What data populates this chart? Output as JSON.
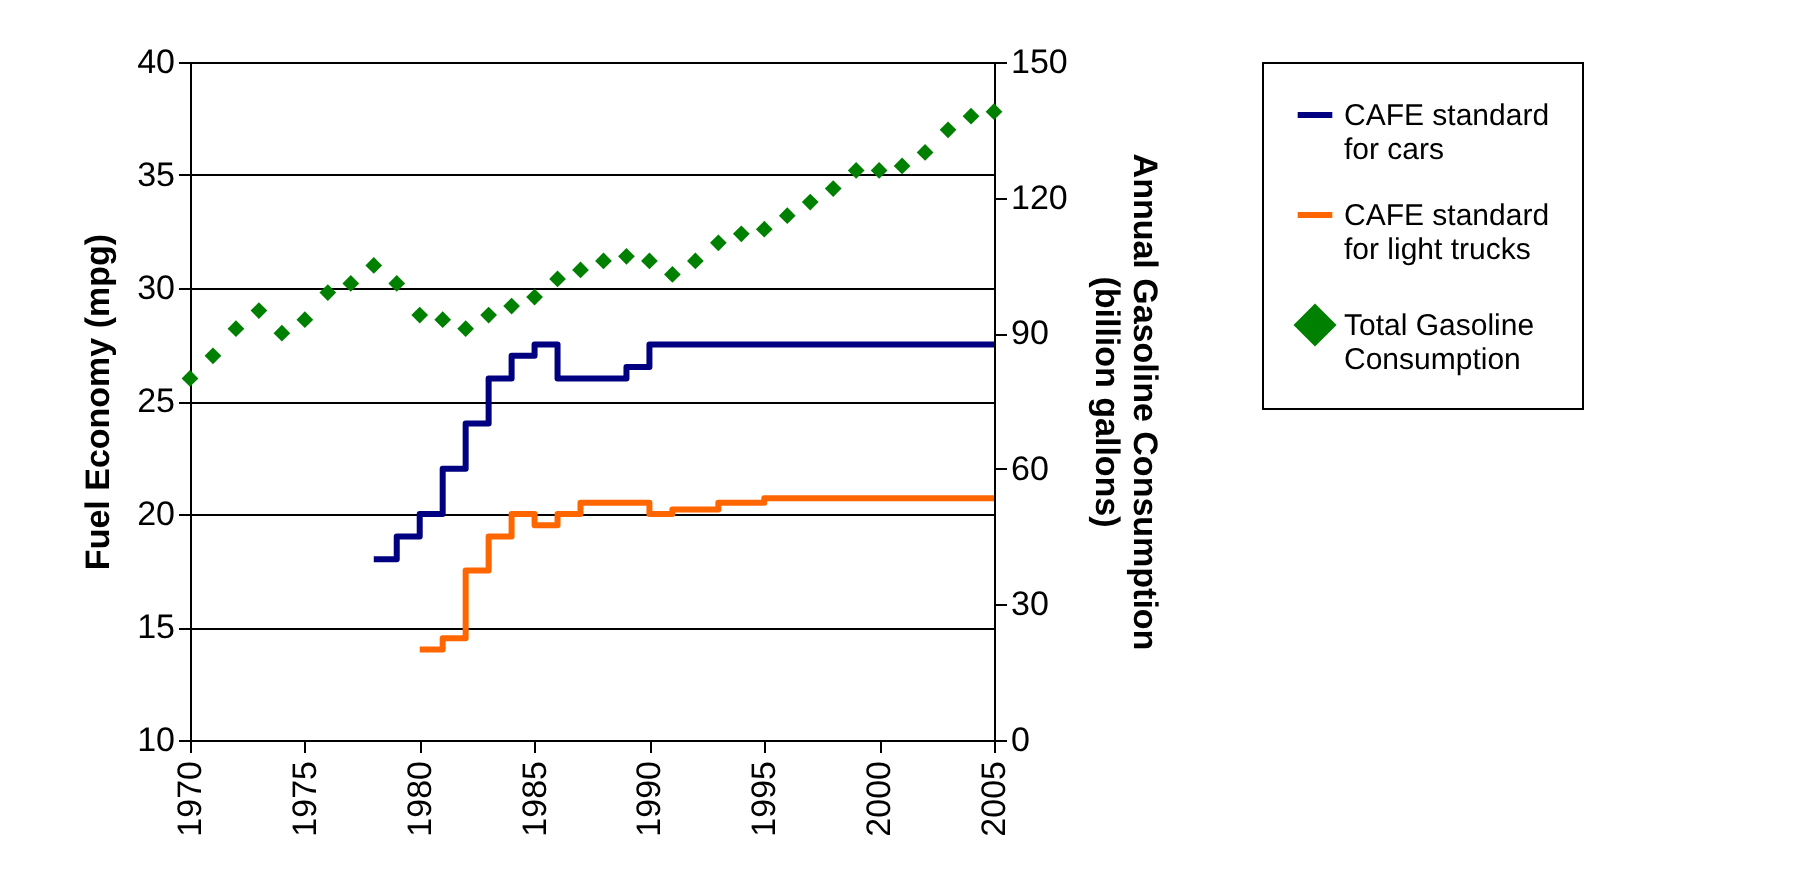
{
  "chart_data": {
    "type": "step",
    "xlabel": null,
    "ylabel": "Fuel Economy (mpg)",
    "y2label": "Annual Gasoline Consumption\n(billion gallons)",
    "xlim": [
      1970,
      2005
    ],
    "xticks": [
      1970,
      1975,
      1980,
      1985,
      1990,
      1995,
      2000,
      2005
    ],
    "ylim": [
      10,
      40
    ],
    "yticks": [
      10,
      15,
      20,
      25,
      30,
      35,
      40
    ],
    "y2lim": [
      0,
      150
    ],
    "y2ticks": [
      0,
      30,
      60,
      90,
      120,
      150
    ],
    "grid": "y",
    "legend": "right",
    "series": [
      {
        "name": "CAFE standard for cars",
        "color": "#000080",
        "x": [
          1978,
          1979,
          1980,
          1981,
          1982,
          1983,
          1984,
          1985,
          1986,
          1987,
          1988,
          1989,
          1990,
          1991,
          1992,
          1993,
          1994,
          1995,
          1996,
          1997,
          1998,
          1999,
          2000,
          2001,
          2002,
          2003,
          2004,
          2005
        ],
        "values": [
          18.0,
          19.0,
          20.0,
          22.0,
          24.0,
          26.0,
          27.0,
          27.5,
          26.0,
          26.0,
          26.0,
          26.5,
          27.5,
          27.5,
          27.5,
          27.5,
          27.5,
          27.5,
          27.5,
          27.5,
          27.5,
          27.5,
          27.5,
          27.5,
          27.5,
          27.5,
          27.5,
          27.5
        ]
      },
      {
        "name": "CAFE standard for light trucks",
        "color": "#ff6600",
        "x": [
          1980,
          1981,
          1982,
          1983,
          1984,
          1985,
          1986,
          1987,
          1988,
          1989,
          1990,
          1991,
          1992,
          1993,
          1994,
          1995,
          1996,
          1997,
          1998,
          1999,
          2000,
          2001,
          2002,
          2003,
          2004,
          2005
        ],
        "values": [
          14.0,
          14.5,
          17.5,
          19.0,
          20.0,
          19.5,
          20.0,
          20.5,
          20.5,
          20.5,
          20.0,
          20.2,
          20.2,
          20.5,
          20.5,
          20.7,
          20.7,
          20.7,
          20.7,
          20.7,
          20.7,
          20.7,
          20.7,
          20.7,
          20.7,
          20.7
        ]
      },
      {
        "name": "Total Gasoline Consumption",
        "type": "scatter",
        "axis": "y2",
        "marker": "diamond",
        "color": "#008000",
        "x": [
          1970,
          1971,
          1972,
          1973,
          1974,
          1975,
          1976,
          1977,
          1978,
          1979,
          1980,
          1981,
          1982,
          1983,
          1984,
          1985,
          1986,
          1987,
          1988,
          1989,
          1990,
          1991,
          1992,
          1993,
          1994,
          1995,
          1996,
          1997,
          1998,
          1999,
          2000,
          2001,
          2002,
          2003,
          2004,
          2005
        ],
        "values": [
          80,
          85,
          91,
          95,
          90,
          93,
          99,
          101,
          105,
          101,
          94,
          93,
          91,
          94,
          96,
          98,
          102,
          104,
          106,
          107,
          106,
          103,
          106,
          110,
          112,
          113,
          116,
          119,
          122,
          126,
          126,
          127,
          130,
          135,
          138,
          139
        ]
      }
    ]
  }
}
